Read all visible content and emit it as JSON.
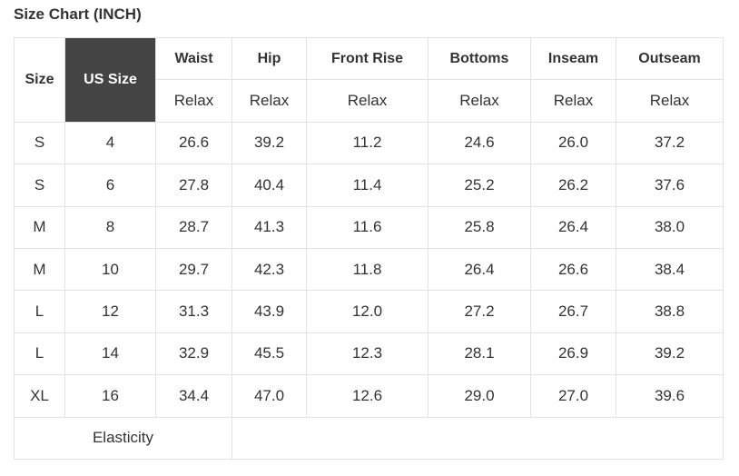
{
  "title": "Size Chart (INCH)",
  "table": {
    "header": {
      "size": "Size",
      "us_size": "US Size",
      "columns": [
        "Waist",
        "Hip",
        "Front Rise",
        "Bottoms",
        "Inseam",
        "Outseam"
      ],
      "subheaders": [
        "Relax",
        "Relax",
        "Relax",
        "Relax",
        "Relax",
        "Relax"
      ]
    },
    "rows": [
      [
        "S",
        "4",
        "26.6",
        "39.2",
        "11.2",
        "24.6",
        "26.0",
        "37.2"
      ],
      [
        "S",
        "6",
        "27.8",
        "40.4",
        "11.4",
        "25.2",
        "26.2",
        "37.6"
      ],
      [
        "M",
        "8",
        "28.7",
        "41.3",
        "11.6",
        "25.8",
        "26.4",
        "38.0"
      ],
      [
        "M",
        "10",
        "29.7",
        "42.3",
        "11.8",
        "26.4",
        "26.6",
        "38.4"
      ],
      [
        "L",
        "12",
        "31.3",
        "43.9",
        "12.0",
        "27.2",
        "26.7",
        "38.8"
      ],
      [
        "L",
        "14",
        "32.9",
        "45.5",
        "12.3",
        "28.1",
        "26.9",
        "39.2"
      ],
      [
        "XL",
        "16",
        "34.4",
        "47.0",
        "12.6",
        "29.0",
        "27.0",
        "39.6"
      ]
    ],
    "footer": "Elasticity"
  }
}
